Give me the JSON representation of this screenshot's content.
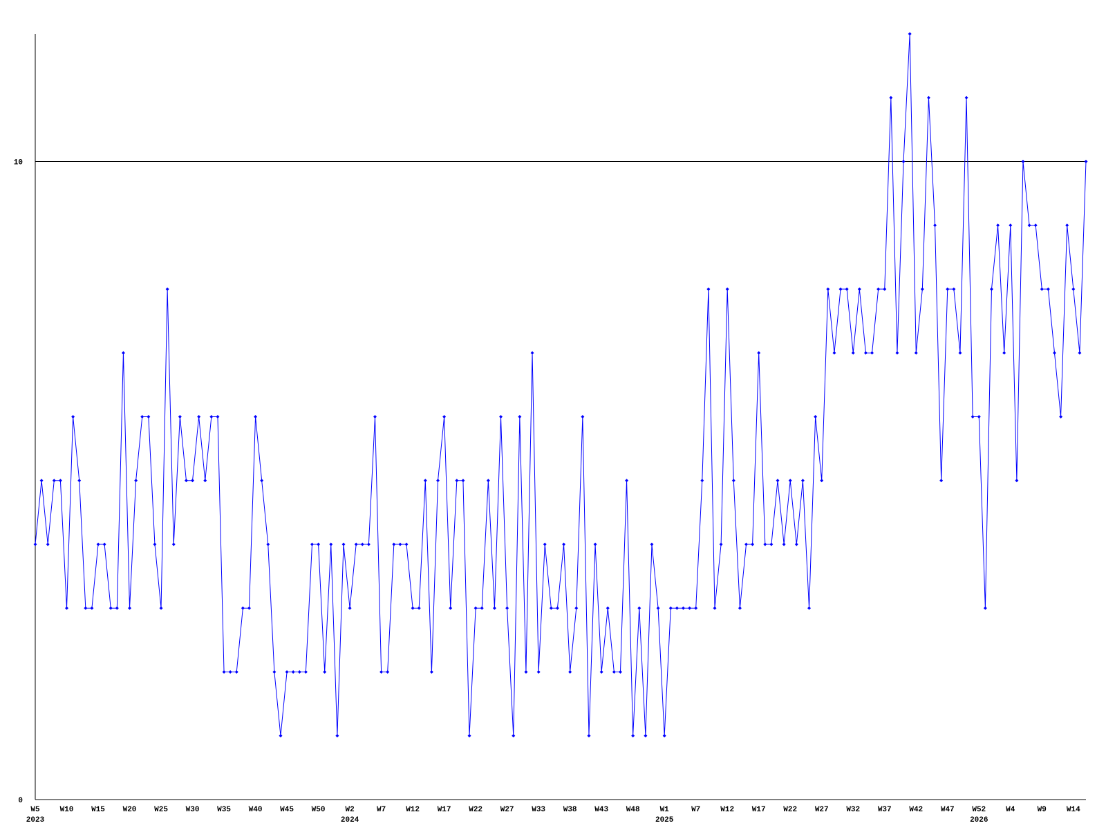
{
  "chart_data": {
    "type": "line",
    "categories": [
      "W5",
      null,
      null,
      null,
      null,
      "W10",
      null,
      null,
      null,
      null,
      "W15",
      null,
      null,
      null,
      null,
      "W20",
      null,
      null,
      null,
      null,
      "W25",
      null,
      null,
      null,
      null,
      "W30",
      null,
      null,
      null,
      null,
      "W35",
      null,
      null,
      null,
      null,
      "W40",
      null,
      null,
      null,
      null,
      "W45",
      null,
      null,
      null,
      null,
      "W50",
      null,
      null,
      null,
      null,
      "W2",
      null,
      null,
      null,
      null,
      "W7",
      null,
      null,
      null,
      null,
      "W12",
      null,
      null,
      null,
      null,
      "W17",
      null,
      null,
      null,
      null,
      "W22",
      null,
      null,
      null,
      null,
      "W27",
      null,
      null,
      null,
      null,
      "W33",
      null,
      null,
      null,
      null,
      "W38",
      null,
      null,
      null,
      null,
      "W43",
      null,
      null,
      null,
      null,
      "W48",
      null,
      null,
      null,
      null,
      "W1",
      null,
      null,
      null,
      null,
      "W7",
      null,
      null,
      null,
      null,
      "W12",
      null,
      null,
      null,
      null,
      "W17",
      null,
      null,
      null,
      null,
      "W22",
      null,
      null,
      null,
      null,
      "W27",
      null,
      null,
      null,
      null,
      "W32",
      null,
      null,
      null,
      null,
      "W37",
      null,
      null,
      null,
      null,
      "W42",
      null,
      null,
      null,
      null,
      "W47",
      null,
      null,
      null,
      null,
      "W52",
      null,
      null,
      null,
      null,
      "W4",
      null,
      null,
      null,
      null,
      "W9",
      null,
      null,
      null,
      null,
      "W14",
      null,
      null
    ],
    "years": [
      "2023",
      null,
      null,
      null,
      null,
      null,
      null,
      null,
      null,
      null,
      null,
      null,
      null,
      null,
      null,
      null,
      null,
      null,
      null,
      null,
      null,
      null,
      null,
      null,
      null,
      null,
      null,
      null,
      null,
      null,
      null,
      null,
      null,
      null,
      null,
      null,
      null,
      null,
      null,
      null,
      null,
      null,
      null,
      null,
      null,
      null,
      null,
      null,
      null,
      null,
      "2024",
      null,
      null,
      null,
      null,
      null,
      null,
      null,
      null,
      null,
      null,
      null,
      null,
      null,
      null,
      null,
      null,
      null,
      null,
      null,
      null,
      null,
      null,
      null,
      null,
      null,
      null,
      null,
      null,
      null,
      null,
      null,
      null,
      null,
      null,
      null,
      null,
      null,
      null,
      null,
      null,
      null,
      null,
      null,
      null,
      null,
      null,
      null,
      null,
      null,
      "2025",
      null,
      null,
      null,
      null,
      null,
      null,
      null,
      null,
      null,
      null,
      null,
      null,
      null,
      null,
      null,
      null,
      null,
      null,
      null,
      null,
      null,
      null,
      null,
      null,
      null,
      null,
      null,
      null,
      null,
      null,
      null,
      null,
      null,
      null,
      null,
      null,
      null,
      null,
      null,
      null,
      null,
      null,
      null,
      null,
      null,
      null,
      null,
      null,
      null,
      "2026",
      null,
      null,
      null,
      null,
      null,
      null,
      null,
      null,
      null,
      null,
      null,
      null,
      null,
      null,
      null,
      null,
      null
    ],
    "series": [
      {
        "color": "#0000ff",
        "values": [
          4,
          5,
          4,
          5,
          5,
          3,
          6,
          5,
          3,
          3,
          4,
          4,
          3,
          3,
          7,
          3,
          5,
          6,
          6,
          4,
          3,
          8,
          4,
          6,
          5,
          5,
          6,
          5,
          6,
          6,
          2,
          2,
          2,
          3,
          3,
          6,
          5,
          4,
          2,
          1,
          2,
          2,
          2,
          2,
          4,
          4,
          2,
          4,
          1,
          4,
          3,
          4,
          4,
          4,
          6,
          2,
          2,
          4,
          4,
          4,
          3,
          3,
          5,
          2,
          5,
          6,
          3,
          5,
          5,
          1,
          3,
          3,
          5,
          3,
          6,
          3,
          1,
          6,
          2,
          7,
          2,
          4,
          3,
          3,
          4,
          2,
          3,
          6,
          1,
          4,
          2,
          3,
          2,
          2,
          5,
          1,
          3,
          1,
          4,
          3,
          1,
          3,
          3,
          3,
          3,
          3,
          5,
          8,
          3,
          4,
          8,
          5,
          3,
          4,
          4,
          7,
          4,
          4,
          5,
          4,
          5,
          4,
          5,
          3,
          6,
          5,
          8,
          7,
          8,
          8,
          7,
          8,
          7,
          7,
          8,
          8,
          11,
          7,
          10,
          12,
          7,
          8,
          11,
          9,
          5,
          8,
          8,
          7,
          11,
          6,
          6,
          3,
          8,
          9,
          7,
          9,
          5,
          10,
          9,
          9,
          8,
          8,
          7,
          6,
          9,
          8,
          7,
          10
        ]
      }
    ],
    "ylim": [
      0,
      12
    ],
    "yticks": [
      0,
      10
    ],
    "grid": true
  }
}
